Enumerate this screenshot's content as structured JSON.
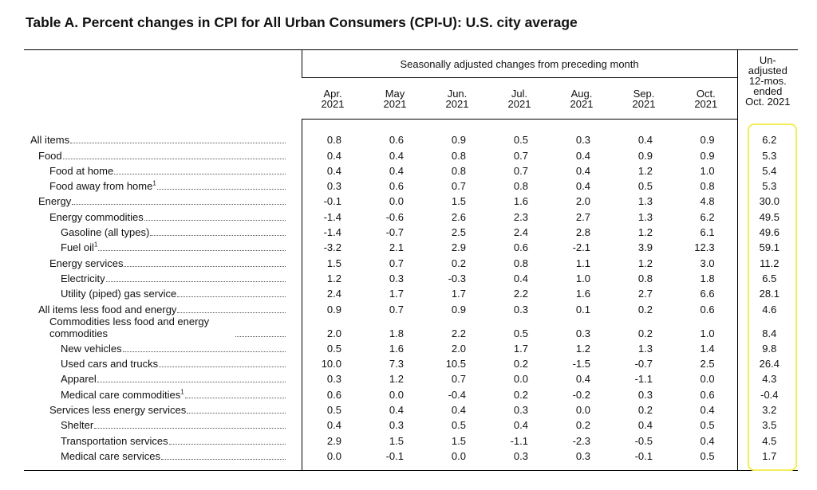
{
  "title": "Table A. Percent changes in CPI for All Urban Consumers (CPI-U): U.S. city average",
  "table": {
    "group_header": "Seasonally adjusted changes from preceding month",
    "columns": [
      [
        "Apr.",
        "2021"
      ],
      [
        "May",
        "2021"
      ],
      [
        "Jun.",
        "2021"
      ],
      [
        "Jul.",
        "2021"
      ],
      [
        "Aug.",
        "2021"
      ],
      [
        "Sep.",
        "2021"
      ],
      [
        "Oct.",
        "2021"
      ]
    ],
    "last_column": [
      "Un-",
      "adjusted",
      "12-mos.",
      "ended",
      "Oct. 2021"
    ],
    "rows": [
      {
        "label": "All items",
        "level": 0,
        "values": [
          "0.8",
          "0.6",
          "0.9",
          "0.5",
          "0.3",
          "0.4",
          "0.9",
          "6.2"
        ]
      },
      {
        "label": "Food",
        "level": 1,
        "values": [
          "0.4",
          "0.4",
          "0.8",
          "0.7",
          "0.4",
          "0.9",
          "0.9",
          "5.3"
        ]
      },
      {
        "label": "Food at home",
        "level": 2,
        "values": [
          "0.4",
          "0.4",
          "0.8",
          "0.7",
          "0.4",
          "1.2",
          "1.0",
          "5.4"
        ]
      },
      {
        "label": "Food away from home",
        "note": "1",
        "level": 2,
        "values": [
          "0.3",
          "0.6",
          "0.7",
          "0.8",
          "0.4",
          "0.5",
          "0.8",
          "5.3"
        ]
      },
      {
        "label": "Energy",
        "level": 1,
        "values": [
          "-0.1",
          "0.0",
          "1.5",
          "1.6",
          "2.0",
          "1.3",
          "4.8",
          "30.0"
        ]
      },
      {
        "label": "Energy commodities",
        "level": 2,
        "values": [
          "-1.4",
          "-0.6",
          "2.6",
          "2.3",
          "2.7",
          "1.3",
          "6.2",
          "49.5"
        ]
      },
      {
        "label": "Gasoline (all types)",
        "level": 3,
        "values": [
          "-1.4",
          "-0.7",
          "2.5",
          "2.4",
          "2.8",
          "1.2",
          "6.1",
          "49.6"
        ]
      },
      {
        "label": "Fuel oil",
        "note": "1",
        "level": 3,
        "values": [
          "-3.2",
          "2.1",
          "2.9",
          "0.6",
          "-2.1",
          "3.9",
          "12.3",
          "59.1"
        ]
      },
      {
        "label": "Energy services",
        "level": 2,
        "values": [
          "1.5",
          "0.7",
          "0.2",
          "0.8",
          "1.1",
          "1.2",
          "3.0",
          "11.2"
        ]
      },
      {
        "label": "Electricity",
        "level": 3,
        "values": [
          "1.2",
          "0.3",
          "-0.3",
          "0.4",
          "1.0",
          "0.8",
          "1.8",
          "6.5"
        ]
      },
      {
        "label": "Utility (piped) gas service",
        "level": 3,
        "values": [
          "2.4",
          "1.7",
          "1.7",
          "2.2",
          "1.6",
          "2.7",
          "6.6",
          "28.1"
        ]
      },
      {
        "label": "All items less food and energy",
        "level": 1,
        "values": [
          "0.9",
          "0.7",
          "0.9",
          "0.3",
          "0.1",
          "0.2",
          "0.6",
          "4.6"
        ]
      },
      {
        "label": "Commodities less food and energy commodities",
        "level": 2,
        "values": [
          "2.0",
          "1.8",
          "2.2",
          "0.5",
          "0.3",
          "0.2",
          "1.0",
          "8.4"
        ]
      },
      {
        "label": "New vehicles",
        "level": 3,
        "values": [
          "0.5",
          "1.6",
          "2.0",
          "1.7",
          "1.2",
          "1.3",
          "1.4",
          "9.8"
        ]
      },
      {
        "label": "Used cars and trucks",
        "level": 3,
        "values": [
          "10.0",
          "7.3",
          "10.5",
          "0.2",
          "-1.5",
          "-0.7",
          "2.5",
          "26.4"
        ]
      },
      {
        "label": "Apparel",
        "level": 3,
        "values": [
          "0.3",
          "1.2",
          "0.7",
          "0.0",
          "0.4",
          "-1.1",
          "0.0",
          "4.3"
        ]
      },
      {
        "label": "Medical care commodities",
        "note": "1",
        "level": 3,
        "values": [
          "0.6",
          "0.0",
          "-0.4",
          "0.2",
          "-0.2",
          "0.3",
          "0.6",
          "-0.4"
        ]
      },
      {
        "label": "Services less energy services",
        "level": 2,
        "values": [
          "0.5",
          "0.4",
          "0.4",
          "0.3",
          "0.0",
          "0.2",
          "0.4",
          "3.2"
        ]
      },
      {
        "label": "Shelter",
        "level": 3,
        "values": [
          "0.4",
          "0.3",
          "0.5",
          "0.4",
          "0.2",
          "0.4",
          "0.5",
          "3.5"
        ]
      },
      {
        "label": "Transportation services",
        "level": 3,
        "values": [
          "2.9",
          "1.5",
          "1.5",
          "-1.1",
          "-2.3",
          "-0.5",
          "0.4",
          "4.5"
        ]
      },
      {
        "label": "Medical care services",
        "level": 3,
        "values": [
          "0.0",
          "-0.1",
          "0.0",
          "0.3",
          "0.3",
          "-0.1",
          "0.5",
          "1.7"
        ]
      }
    ]
  }
}
